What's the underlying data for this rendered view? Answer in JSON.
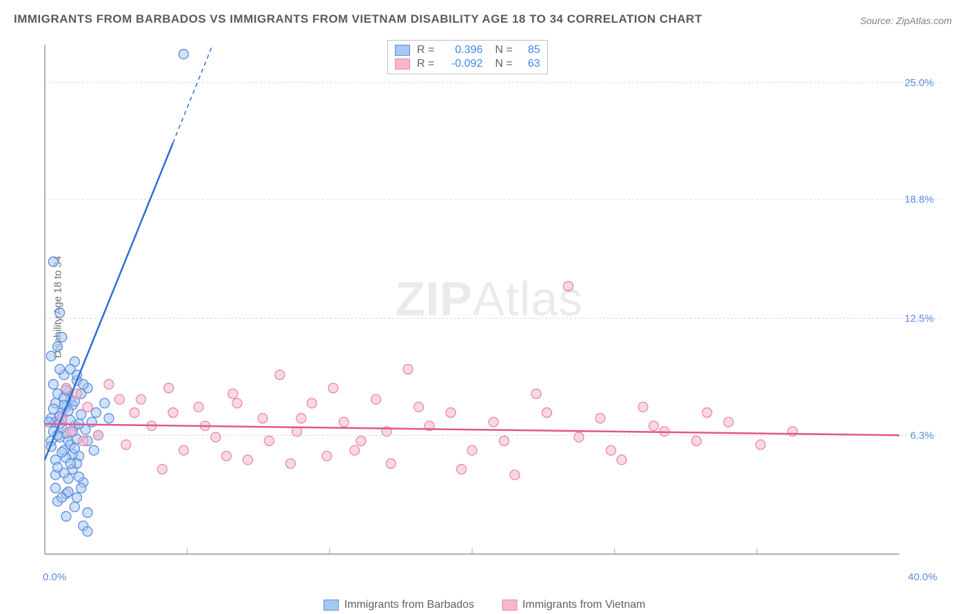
{
  "title": "IMMIGRANTS FROM BARBADOS VS IMMIGRANTS FROM VIETNAM DISABILITY AGE 18 TO 34 CORRELATION CHART",
  "source": "Source: ZipAtlas.com",
  "ylabel": "Disability Age 18 to 34",
  "watermark_zip": "ZIP",
  "watermark_atlas": "Atlas",
  "chart": {
    "type": "scatter",
    "background_color": "#ffffff",
    "grid_color": "#d8d8d8",
    "axis_color": "#808080",
    "xlim": [
      0,
      40
    ],
    "ylim": [
      0,
      27
    ],
    "x_ticks": [
      0,
      6.67,
      13.33,
      20,
      26.67,
      33.33,
      40
    ],
    "x_tick_labels": [
      "0.0%",
      "",
      "",
      "",
      "",
      "",
      "40.0%"
    ],
    "y_ticks": [
      6.3,
      12.5,
      18.8,
      25.0
    ],
    "y_tick_labels": [
      "6.3%",
      "12.5%",
      "18.8%",
      "25.0%"
    ],
    "axis_label_color": "#5a8be0",
    "axis_label_fontsize": 15
  },
  "series": [
    {
      "name": "Immigrants from Barbados",
      "color_fill": "#a8c8f0",
      "color_stroke": "#5a8be0",
      "marker_radius": 7,
      "fill_opacity": 0.55,
      "regression": {
        "slope": 2.8,
        "intercept": 5.0,
        "color": "#2e6dd0",
        "width": 2.5,
        "dash_after_x": 6
      },
      "R": 0.396,
      "N": 85,
      "points": [
        [
          0.3,
          7.2
        ],
        [
          0.4,
          6.5
        ],
        [
          0.5,
          7.0
        ],
        [
          0.6,
          8.5
        ],
        [
          0.7,
          6.2
        ],
        [
          0.8,
          7.5
        ],
        [
          0.9,
          5.5
        ],
        [
          1.0,
          7.8
        ],
        [
          1.1,
          6.0
        ],
        [
          1.2,
          8.2
        ],
        [
          1.3,
          4.5
        ],
        [
          1.4,
          6.8
        ],
        [
          1.5,
          9.2
        ],
        [
          1.6,
          5.2
        ],
        [
          1.7,
          7.4
        ],
        [
          1.8,
          3.8
        ],
        [
          1.9,
          6.6
        ],
        [
          2.0,
          8.8
        ],
        [
          0.5,
          4.2
        ],
        [
          0.8,
          11.5
        ],
        [
          1.0,
          3.2
        ],
        [
          1.2,
          5.8
        ],
        [
          1.4,
          10.2
        ],
        [
          0.6,
          2.8
        ],
        [
          0.9,
          9.5
        ],
        [
          1.1,
          4.0
        ],
        [
          1.3,
          7.9
        ],
        [
          1.5,
          6.1
        ],
        [
          1.7,
          3.5
        ],
        [
          2.0,
          2.2
        ],
        [
          2.2,
          7.0
        ],
        [
          2.5,
          6.3
        ],
        [
          2.8,
          8.0
        ],
        [
          3.0,
          7.2
        ],
        [
          0.4,
          15.5
        ],
        [
          0.7,
          12.8
        ],
        [
          1.0,
          2.0
        ],
        [
          1.5,
          4.8
        ],
        [
          1.8,
          9.0
        ],
        [
          2.3,
          5.5
        ],
        [
          0.3,
          10.5
        ],
        [
          0.5,
          5.0
        ],
        [
          0.8,
          3.0
        ],
        [
          1.1,
          8.6
        ],
        [
          1.4,
          2.5
        ],
        [
          1.6,
          6.9
        ],
        [
          0.2,
          7.0
        ],
        [
          0.6,
          11.0
        ],
        [
          0.9,
          4.3
        ],
        [
          1.2,
          9.8
        ],
        [
          6.5,
          26.5
        ],
        [
          0.5,
          8.0
        ],
        [
          0.7,
          7.3
        ],
        [
          1.0,
          6.4
        ],
        [
          1.3,
          5.3
        ],
        [
          0.4,
          9.0
        ],
        [
          0.8,
          6.7
        ],
        [
          1.1,
          7.6
        ],
        [
          1.5,
          3.0
        ],
        [
          0.3,
          6.0
        ],
        [
          0.6,
          4.6
        ],
        [
          0.9,
          8.3
        ],
        [
          1.2,
          7.1
        ],
        [
          1.4,
          5.6
        ],
        [
          1.7,
          8.5
        ],
        [
          2.0,
          6.0
        ],
        [
          2.4,
          7.5
        ],
        [
          0.5,
          3.5
        ],
        [
          0.7,
          9.8
        ],
        [
          1.0,
          5.1
        ],
        [
          1.3,
          6.5
        ],
        [
          1.6,
          4.1
        ],
        [
          0.4,
          7.7
        ],
        [
          0.8,
          5.4
        ],
        [
          1.1,
          3.3
        ],
        [
          1.4,
          8.1
        ],
        [
          0.6,
          6.3
        ],
        [
          0.9,
          7.9
        ],
        [
          1.2,
          4.8
        ],
        [
          1.5,
          9.5
        ],
        [
          0.3,
          5.7
        ],
        [
          0.7,
          6.9
        ],
        [
          1.0,
          8.7
        ],
        [
          1.8,
          1.5
        ],
        [
          2.0,
          1.2
        ]
      ]
    },
    {
      "name": "Immigrants from Vietnam",
      "color_fill": "#f5b8ca",
      "color_stroke": "#e887a9",
      "marker_radius": 7,
      "fill_opacity": 0.55,
      "regression": {
        "slope": -0.015,
        "intercept": 6.9,
        "color": "#e05590",
        "width": 2.5
      },
      "R": -0.092,
      "N": 63,
      "points": [
        [
          3.5,
          8.2
        ],
        [
          4.2,
          7.5
        ],
        [
          5.0,
          6.8
        ],
        [
          5.8,
          8.8
        ],
        [
          6.5,
          5.5
        ],
        [
          7.2,
          7.8
        ],
        [
          8.0,
          6.2
        ],
        [
          8.8,
          8.5
        ],
        [
          9.5,
          5.0
        ],
        [
          10.2,
          7.2
        ],
        [
          11.0,
          9.5
        ],
        [
          11.8,
          6.5
        ],
        [
          12.5,
          8.0
        ],
        [
          13.2,
          5.2
        ],
        [
          14.0,
          7.0
        ],
        [
          14.8,
          6.0
        ],
        [
          15.5,
          8.2
        ],
        [
          16.2,
          4.8
        ],
        [
          17.0,
          9.8
        ],
        [
          18.0,
          6.8
        ],
        [
          19.0,
          7.5
        ],
        [
          20.0,
          5.5
        ],
        [
          21.0,
          7.0
        ],
        [
          22.0,
          4.2
        ],
        [
          23.0,
          8.5
        ],
        [
          24.5,
          14.2
        ],
        [
          25.0,
          6.2
        ],
        [
          26.0,
          7.2
        ],
        [
          27.0,
          5.0
        ],
        [
          28.0,
          7.8
        ],
        [
          29.0,
          6.5
        ],
        [
          30.5,
          6.0
        ],
        [
          32.0,
          7.0
        ],
        [
          33.5,
          5.8
        ],
        [
          35.0,
          6.5
        ],
        [
          2.0,
          7.8
        ],
        [
          2.5,
          6.3
        ],
        [
          3.0,
          9.0
        ],
        [
          3.8,
          5.8
        ],
        [
          4.5,
          8.2
        ],
        [
          5.5,
          4.5
        ],
        [
          6.0,
          7.5
        ],
        [
          7.5,
          6.8
        ],
        [
          8.5,
          5.2
        ],
        [
          9.0,
          8.0
        ],
        [
          10.5,
          6.0
        ],
        [
          11.5,
          4.8
        ],
        [
          12.0,
          7.2
        ],
        [
          13.5,
          8.8
        ],
        [
          14.5,
          5.5
        ],
        [
          16.0,
          6.5
        ],
        [
          17.5,
          7.8
        ],
        [
          19.5,
          4.5
        ],
        [
          21.5,
          6.0
        ],
        [
          23.5,
          7.5
        ],
        [
          26.5,
          5.5
        ],
        [
          28.5,
          6.8
        ],
        [
          31.0,
          7.5
        ],
        [
          1.5,
          8.5
        ],
        [
          1.8,
          6.0
        ],
        [
          0.8,
          7.2
        ],
        [
          1.0,
          8.8
        ],
        [
          1.2,
          6.5
        ]
      ]
    }
  ],
  "stats_legend": {
    "rows": [
      {
        "swatch_fill": "#a8c8f0",
        "swatch_stroke": "#5a8be0",
        "r_label": "R =",
        "r_val": "0.396",
        "n_label": "N =",
        "n_val": "85"
      },
      {
        "swatch_fill": "#f5b8ca",
        "swatch_stroke": "#e887a9",
        "r_label": "R =",
        "r_val": "-0.092",
        "n_label": "N =",
        "n_val": "63"
      }
    ]
  },
  "bottom_legend": {
    "items": [
      {
        "swatch_fill": "#a8c8f0",
        "swatch_stroke": "#5a8be0",
        "label": "Immigrants from Barbados"
      },
      {
        "swatch_fill": "#f5b8ca",
        "swatch_stroke": "#e887a9",
        "label": "Immigrants from Vietnam"
      }
    ]
  }
}
